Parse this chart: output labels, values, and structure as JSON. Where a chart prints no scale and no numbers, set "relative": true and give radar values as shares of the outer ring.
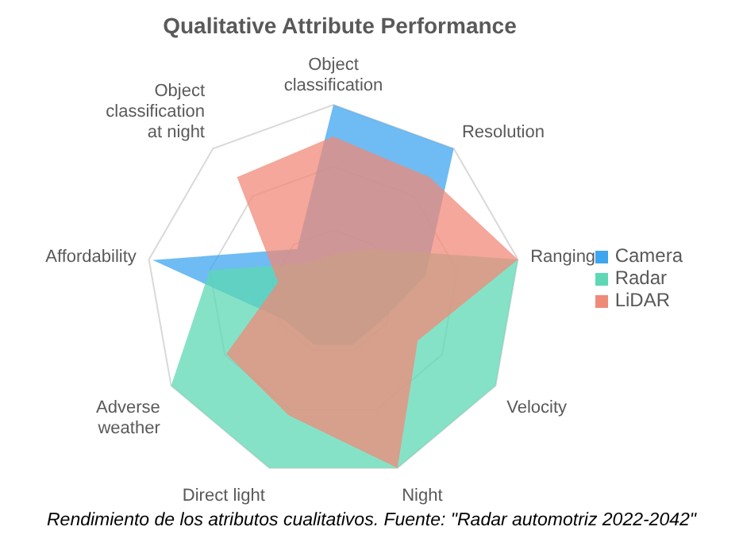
{
  "chart_data": {
    "type": "radar",
    "title": "Qualitative Attribute Performance",
    "relative": true,
    "grid": true,
    "legend": "right",
    "categories": [
      "Object classification",
      "Resolution",
      "Ranging",
      "Velocity",
      "Night",
      "Direct light",
      "Adverse weather",
      "Affordability",
      "Object classification at night"
    ],
    "series": [
      {
        "name": "Camera",
        "color": "#3ea5ef",
        "values": [
          1,
          1,
          0.5,
          0.3,
          0.3,
          0.3,
          0.3,
          0.98,
          0.3
        ]
      },
      {
        "name": "Radar",
        "color": "#5ed8b4",
        "values": [
          0.2,
          0.3,
          1,
          1,
          1,
          1,
          1,
          0.67,
          0.2
        ]
      },
      {
        "name": "LiDAR",
        "color": "#f08a78",
        "values": [
          0.83,
          0.8,
          1,
          0.52,
          1,
          0.7,
          0.66,
          0.3,
          0.8
        ]
      }
    ],
    "annotations": [
      "Rendimiento de los atributos cualitativos. Fuente: \"Radar automotriz 2022-2042\""
    ]
  }
}
